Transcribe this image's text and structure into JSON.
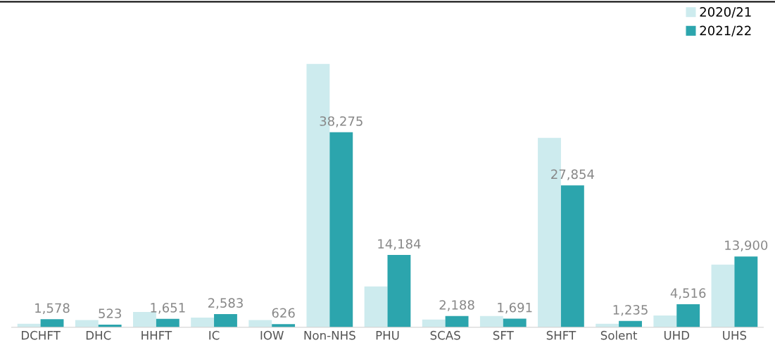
{
  "chart_data": {
    "type": "bar",
    "categories": [
      "DCHFT",
      "DHC",
      "HHFT",
      "IC",
      "IOW",
      "Non-NHS",
      "PHU",
      "SCAS",
      "SFT",
      "SHFT",
      "Solent",
      "UHD",
      "UHS"
    ],
    "series": [
      {
        "name": "2020/21",
        "color": "#cdebee",
        "values": [
          700,
          1400,
          3000,
          1900,
          1400,
          51700,
          8000,
          1500,
          2200,
          37200,
          700,
          2300,
          12300
        ]
      },
      {
        "name": "2021/22",
        "color": "#2ca5ad",
        "values": [
          1578,
          523,
          1651,
          2583,
          626,
          38275,
          14184,
          2188,
          1691,
          27854,
          1235,
          4516,
          13900
        ],
        "value_labels": [
          "1,578",
          "523",
          "1,651",
          "2,583",
          "626",
          "38,275",
          "14,184",
          "2,188",
          "1,691",
          "27,854",
          "1,235",
          "4,516",
          "13,900"
        ]
      }
    ],
    "legend": "top right"
  }
}
